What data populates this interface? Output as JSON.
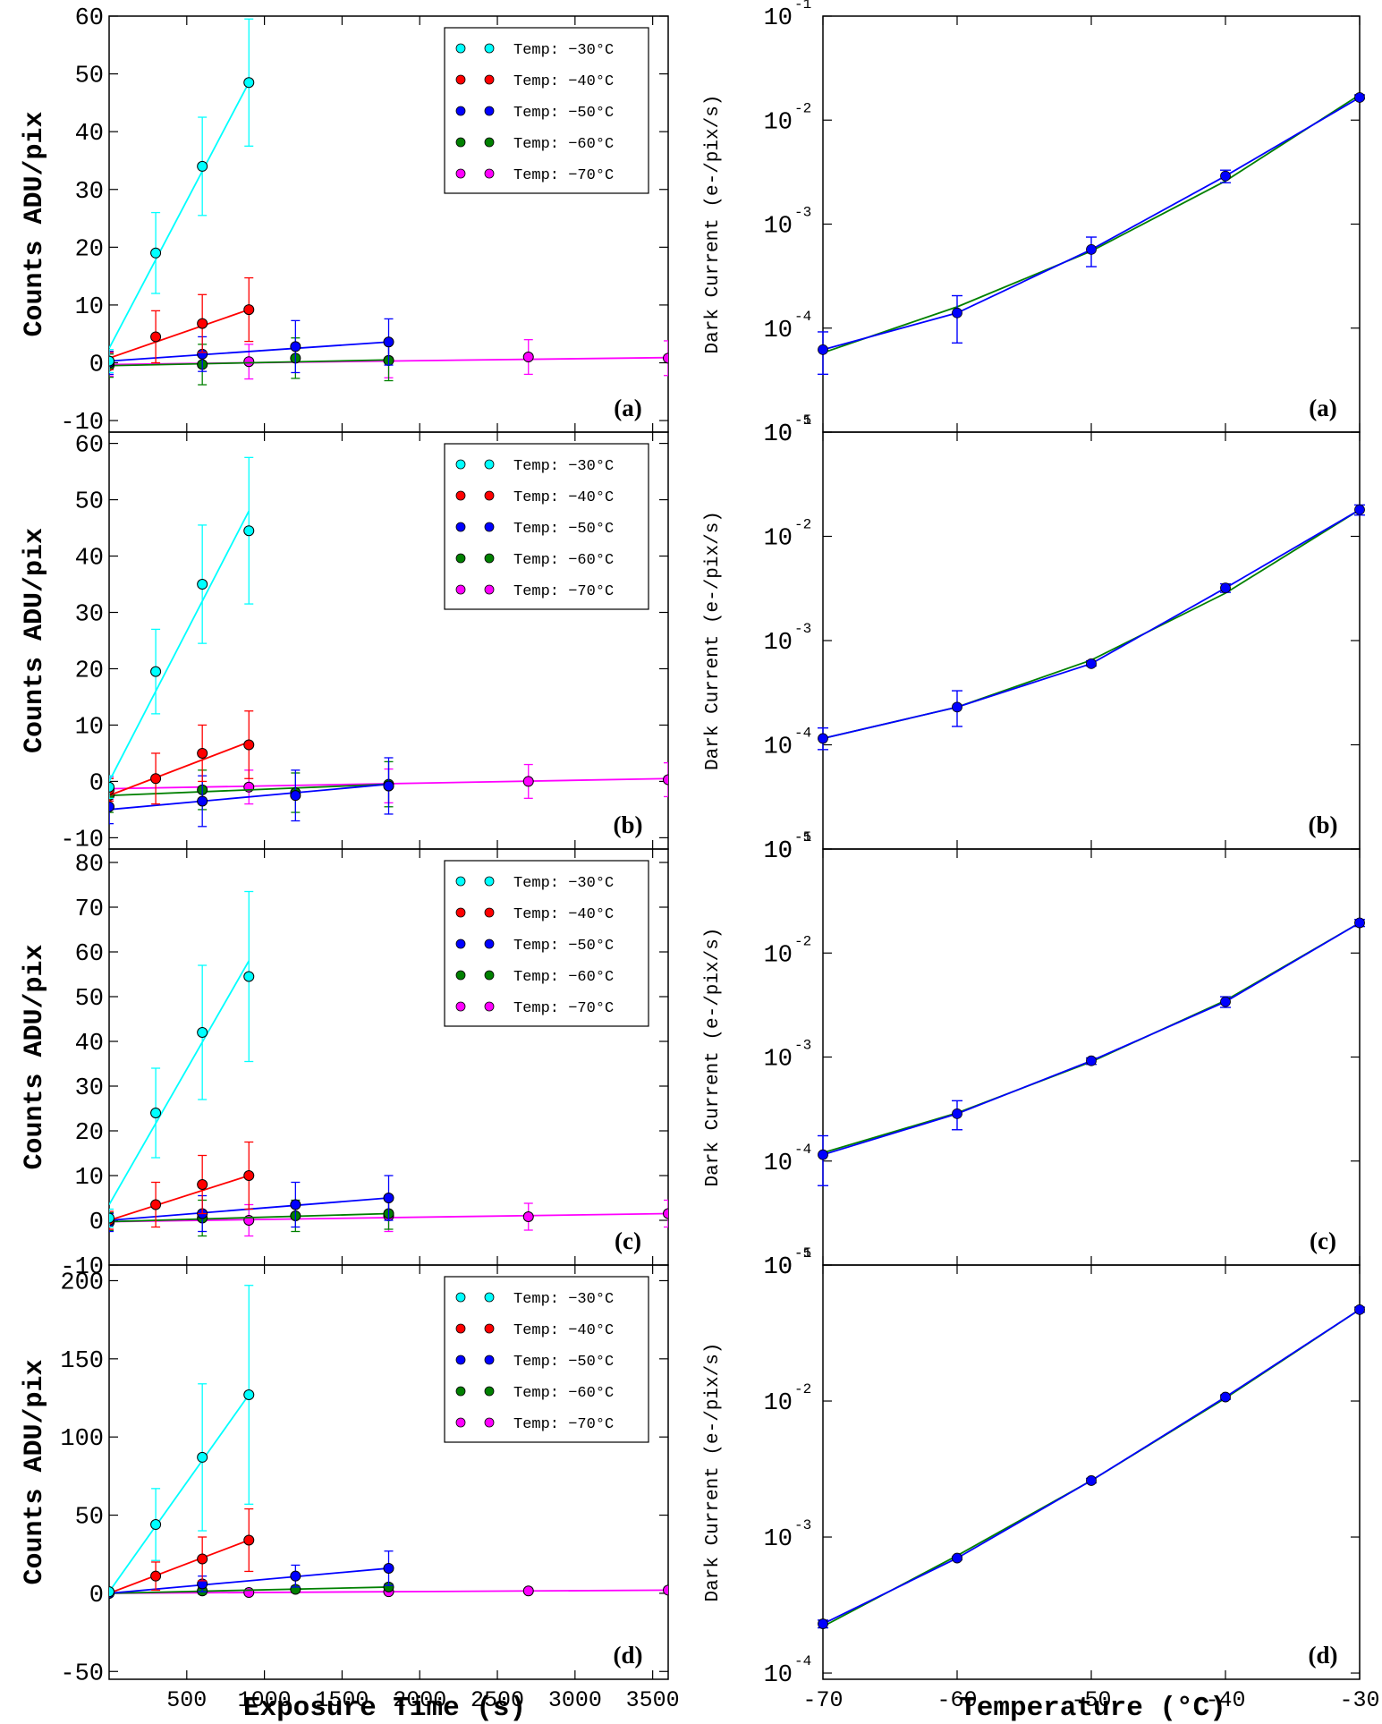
{
  "figure": {
    "left_xlabel": "Exposure Time (s)",
    "right_xlabel": "Temperature (°C)",
    "left_ylabel": "Counts ADU/pix",
    "right_ylabel": "Dark Current (e-/pix/s)"
  },
  "colors": {
    "-30": "#00ffff",
    "-40": "#ff0000",
    "-50": "#0000ff",
    "-60": "#008000",
    "-70": "#ff00ff",
    "fit": "#008000",
    "meas": "#0000ff"
  },
  "chart_data": [
    {
      "type": "scatter",
      "panel": "(a)",
      "title": "",
      "xlabel": "Exposure Time (s)",
      "ylabel": "Counts ADU/pix",
      "xlim": [
        0,
        3600
      ],
      "ylim": [
        -12,
        60
      ],
      "yticks": [
        -10,
        0,
        10,
        20,
        30,
        40,
        50,
        60
      ],
      "xticks": [
        500,
        1000,
        1500,
        2000,
        2500,
        3000,
        3500
      ],
      "legend": "top-right",
      "series": [
        {
          "name": "Temp: −30°C",
          "temp": "-30",
          "x": [
            0,
            300,
            600,
            900
          ],
          "y": [
            0.3,
            19,
            34,
            48.5
          ],
          "err": [
            2,
            7,
            8.5,
            11
          ],
          "fit": [
            [
              0,
              2.5
            ],
            [
              900,
              48.5
            ]
          ]
        },
        {
          "name": "Temp: −40°C",
          "temp": "-40",
          "x": [
            0,
            300,
            600,
            900
          ],
          "y": [
            0.3,
            4.5,
            6.8,
            9.2
          ],
          "err": [
            1.5,
            4.5,
            5,
            5.5
          ],
          "fit": [
            [
              0,
              0.8
            ],
            [
              900,
              9.2
            ]
          ]
        },
        {
          "name": "Temp: −50°C",
          "temp": "-50",
          "x": [
            0,
            600,
            1200,
            1800
          ],
          "y": [
            0,
            1.5,
            2.8,
            3.6
          ],
          "err": [
            2,
            3,
            4.5,
            4
          ],
          "fit": [
            [
              0,
              0.3
            ],
            [
              1800,
              3.6
            ]
          ]
        },
        {
          "name": "Temp: −60°C",
          "temp": "-60",
          "x": [
            0,
            600,
            1200,
            1800
          ],
          "y": [
            -0.5,
            -0.3,
            0.8,
            0.4
          ],
          "err": [
            2,
            3.5,
            3.5,
            3.5
          ],
          "fit": [
            [
              0,
              -0.5
            ],
            [
              1800,
              0.5
            ]
          ]
        },
        {
          "name": "Temp: −70°C",
          "temp": "-70",
          "x": [
            0,
            900,
            1800,
            2700,
            3600
          ],
          "y": [
            -0.3,
            0.2,
            0.4,
            1,
            0.8
          ],
          "err": [
            2,
            3,
            3,
            3,
            3
          ],
          "fit": [
            [
              0,
              -0.3
            ],
            [
              3600,
              0.9
            ]
          ]
        }
      ]
    },
    {
      "type": "scatter",
      "panel": "(b)",
      "title": "",
      "xlabel": "Exposure Time (s)",
      "ylabel": "Counts ADU/pix",
      "xlim": [
        0,
        3600
      ],
      "ylim": [
        -12,
        62
      ],
      "yticks": [
        -10,
        0,
        10,
        20,
        30,
        40,
        50,
        60
      ],
      "xticks": [
        500,
        1000,
        1500,
        2000,
        2500,
        3000,
        3500
      ],
      "legend": "top-right",
      "series": [
        {
          "name": "Temp: −30°C",
          "temp": "-30",
          "x": [
            0,
            300,
            600,
            900
          ],
          "y": [
            -1,
            19.5,
            35,
            44.5
          ],
          "err": [
            2,
            7.5,
            10.5,
            13
          ],
          "fit": [
            [
              0,
              0
            ],
            [
              900,
              48
            ]
          ]
        },
        {
          "name": "Temp: −40°C",
          "temp": "-40",
          "x": [
            0,
            300,
            600,
            900
          ],
          "y": [
            -1.5,
            0.5,
            5,
            6.5
          ],
          "err": [
            2,
            4.5,
            5,
            6
          ],
          "fit": [
            [
              0,
              -2.5
            ],
            [
              900,
              7
            ]
          ]
        },
        {
          "name": "Temp: −50°C",
          "temp": "-50",
          "x": [
            0,
            600,
            1200,
            1800
          ],
          "y": [
            -4.5,
            -3.5,
            -2.5,
            -0.8
          ],
          "err": [
            3,
            4.5,
            4.5,
            5
          ],
          "fit": [
            [
              0,
              -5
            ],
            [
              1800,
              -0.5
            ]
          ]
        },
        {
          "name": "Temp: −60°C",
          "temp": "-60",
          "x": [
            0,
            600,
            1200,
            1800
          ],
          "y": [
            -2.5,
            -1.5,
            -2,
            -0.5
          ],
          "err": [
            3,
            3.5,
            3.5,
            4
          ],
          "fit": [
            [
              0,
              -2.5
            ],
            [
              1800,
              -0.5
            ]
          ]
        },
        {
          "name": "Temp: −70°C",
          "temp": "-70",
          "x": [
            0,
            900,
            1800,
            2700,
            3600
          ],
          "y": [
            -1.2,
            -1,
            -0.8,
            0,
            0.3
          ],
          "err": [
            2,
            3,
            3,
            3,
            3
          ],
          "fit": [
            [
              0,
              -1.3
            ],
            [
              3600,
              0.5
            ]
          ]
        }
      ]
    },
    {
      "type": "scatter",
      "panel": "(c)",
      "title": "",
      "xlabel": "Exposure Time (s)",
      "ylabel": "Counts ADU/pix",
      "xlim": [
        0,
        3600
      ],
      "ylim": [
        -10,
        83
      ],
      "yticks": [
        -10,
        0,
        10,
        20,
        30,
        40,
        50,
        60,
        70,
        80
      ],
      "xticks": [
        500,
        1000,
        1500,
        2000,
        2500,
        3000,
        3500
      ],
      "legend": "top-right",
      "series": [
        {
          "name": "Temp: −30°C",
          "temp": "-30",
          "x": [
            0,
            300,
            600,
            900
          ],
          "y": [
            0.5,
            24,
            42,
            54.5
          ],
          "err": [
            2,
            10,
            15,
            19
          ],
          "fit": [
            [
              0,
              3.5
            ],
            [
              900,
              58
            ]
          ]
        },
        {
          "name": "Temp: −40°C",
          "temp": "-40",
          "x": [
            0,
            300,
            600,
            900
          ],
          "y": [
            0,
            3.5,
            8,
            10
          ],
          "err": [
            2,
            5,
            6.5,
            7.5
          ],
          "fit": [
            [
              0,
              0
            ],
            [
              900,
              10
            ]
          ]
        },
        {
          "name": "Temp: −50°C",
          "temp": "-50",
          "x": [
            0,
            600,
            1200,
            1800
          ],
          "y": [
            -0.5,
            1.5,
            3.5,
            5
          ],
          "err": [
            2,
            4,
            5,
            5
          ],
          "fit": [
            [
              0,
              0
            ],
            [
              1800,
              5
            ]
          ]
        },
        {
          "name": "Temp: −60°C",
          "temp": "-60",
          "x": [
            0,
            600,
            1200,
            1800
          ],
          "y": [
            -0.3,
            0.5,
            1,
            1.5
          ],
          "err": [
            2,
            4,
            3.5,
            3.5
          ],
          "fit": [
            [
              0,
              -0.3
            ],
            [
              1800,
              1.5
            ]
          ]
        },
        {
          "name": "Temp: −70°C",
          "temp": "-70",
          "x": [
            0,
            900,
            1800,
            2700,
            3600
          ],
          "y": [
            -0.3,
            0,
            1,
            0.8,
            1.5
          ],
          "err": [
            2,
            3.5,
            3.5,
            3,
            3
          ],
          "fit": [
            [
              0,
              -0.3
            ],
            [
              3600,
              1.5
            ]
          ]
        }
      ]
    },
    {
      "type": "scatter",
      "panel": "(d)",
      "title": "",
      "xlabel": "Exposure Time (s)",
      "ylabel": "Counts ADU/pix",
      "xlim": [
        0,
        3600
      ],
      "ylim": [
        -55,
        210
      ],
      "yticks": [
        -50,
        0,
        50,
        100,
        150,
        200
      ],
      "xticks": [
        500,
        1000,
        1500,
        2000,
        2500,
        3000,
        3500
      ],
      "legend": "top-right",
      "series": [
        {
          "name": "Temp: −30°C",
          "temp": "-30",
          "x": [
            0,
            300,
            600,
            900
          ],
          "y": [
            1,
            44,
            87,
            127
          ],
          "err": [
            2,
            23,
            47,
            70
          ],
          "fit": [
            [
              0,
              1
            ],
            [
              900,
              127
            ]
          ]
        },
        {
          "name": "Temp: −40°C",
          "temp": "-40",
          "x": [
            0,
            300,
            600,
            900
          ],
          "y": [
            1,
            11,
            22,
            34
          ],
          "err": [
            2,
            9,
            14,
            20
          ],
          "fit": [
            [
              0,
              0
            ],
            [
              900,
              34
            ]
          ]
        },
        {
          "name": "Temp: −50°C",
          "temp": "-50",
          "x": [
            0,
            600,
            1200,
            1800
          ],
          "y": [
            0,
            6,
            11,
            16
          ],
          "err": [
            2,
            5,
            7,
            11
          ],
          "fit": [
            [
              0,
              0
            ],
            [
              1800,
              16
            ]
          ]
        },
        {
          "name": "Temp: −60°C",
          "temp": "-60",
          "x": [
            0,
            600,
            1200,
            1800
          ],
          "y": [
            0,
            1.5,
            2.5,
            4
          ],
          "err": [
            2,
            2,
            2,
            2
          ],
          "fit": [
            [
              0,
              0
            ],
            [
              1800,
              4
            ]
          ]
        },
        {
          "name": "Temp: −70°C",
          "temp": "-70",
          "x": [
            0,
            900,
            1800,
            2700,
            3600
          ],
          "y": [
            0,
            0.5,
            1,
            1.5,
            2
          ],
          "err": [
            1,
            1,
            1,
            1,
            1
          ],
          "fit": [
            [
              0,
              0
            ],
            [
              3600,
              2
            ]
          ]
        }
      ]
    },
    {
      "type": "line",
      "panel": "(a)",
      "title": "",
      "xlabel": "Temperature (°C)",
      "ylabel": "Dark Current (e-/pix/s)",
      "yscale": "log",
      "xlim": [
        -70,
        -30
      ],
      "ylim": [
        1e-05,
        0.1
      ],
      "ytick_exponents": [
        -5,
        -4,
        -3,
        -2,
        -1
      ],
      "xticks": [
        -70,
        -60,
        -50,
        -40,
        -30
      ],
      "series": [
        {
          "name": "fit",
          "x": [
            -70,
            -60,
            -50,
            -40,
            -30
          ],
          "y": [
            5.8e-05,
            0.00016,
            0.00055,
            0.0026,
            0.0175
          ]
        },
        {
          "name": "measured",
          "x": [
            -70,
            -60,
            -50,
            -40,
            -30
          ],
          "y": [
            6.2e-05,
            0.00014,
            0.00057,
            0.0029,
            0.0165
          ],
          "err_low": [
            3.6e-05,
            7.2e-05,
            0.00039,
            0.0025,
            0.016
          ],
          "err_high": [
            9.2e-05,
            0.000205,
            0.00075,
            0.0033,
            0.0175
          ]
        }
      ]
    },
    {
      "type": "line",
      "panel": "(b)",
      "title": "",
      "xlabel": "Temperature (°C)",
      "ylabel": "Dark Current (e-/pix/s)",
      "yscale": "log",
      "xlim": [
        -70,
        -30
      ],
      "ylim": [
        1e-05,
        0.1
      ],
      "ytick_exponents": [
        -5,
        -4,
        -3,
        -2,
        -1
      ],
      "xticks": [
        -70,
        -60,
        -50,
        -40,
        -30
      ],
      "series": [
        {
          "name": "fit",
          "x": [
            -70,
            -60,
            -50,
            -40,
            -30
          ],
          "y": [
            0.000115,
            0.00023,
            0.00065,
            0.00285,
            0.018
          ]
        },
        {
          "name": "measured",
          "x": [
            -70,
            -60,
            -50,
            -40,
            -30
          ],
          "y": [
            0.000115,
            0.00023,
            0.0006,
            0.0032,
            0.018
          ],
          "err_low": [
            9e-05,
            0.00015,
            0.00057,
            0.0029,
            0.016
          ],
          "err_high": [
            0.000145,
            0.00033,
            0.00064,
            0.0035,
            0.02
          ]
        }
      ]
    },
    {
      "type": "line",
      "panel": "(c)",
      "title": "",
      "xlabel": "Temperature (°C)",
      "ylabel": "Dark Current (e-/pix/s)",
      "yscale": "log",
      "xlim": [
        -70,
        -30
      ],
      "ylim": [
        1e-05,
        0.1
      ],
      "ytick_exponents": [
        -5,
        -4,
        -3,
        -2,
        -1
      ],
      "xticks": [
        -70,
        -60,
        -50,
        -40,
        -30
      ],
      "series": [
        {
          "name": "fit",
          "x": [
            -70,
            -60,
            -50,
            -40,
            -30
          ],
          "y": [
            0.00012,
            0.00029,
            0.0009,
            0.0035,
            0.0195
          ]
        },
        {
          "name": "measured",
          "x": [
            -70,
            -60,
            -50,
            -40,
            -30
          ],
          "y": [
            0.000115,
            0.000285,
            0.00092,
            0.0034,
            0.0195
          ],
          "err_low": [
            5.8e-05,
            0.0002,
            0.00085,
            0.003,
            0.018
          ],
          "err_high": [
            0.000175,
            0.00038,
            0.00098,
            0.0038,
            0.021
          ]
        }
      ]
    },
    {
      "type": "line",
      "panel": "(d)",
      "title": "",
      "xlabel": "Temperature (°C)",
      "ylabel": "Dark Current (e-/pix/s)",
      "yscale": "log",
      "xlim": [
        -70,
        -30
      ],
      "ylim": [
        9e-05,
        0.1
      ],
      "ytick_exponents": [
        -4,
        -3,
        -2,
        -1
      ],
      "xticks": [
        -70,
        -60,
        -50,
        -40,
        -30
      ],
      "series": [
        {
          "name": "fit",
          "x": [
            -70,
            -60,
            -50,
            -40,
            -30
          ],
          "y": [
            0.00022,
            0.00073,
            0.0026,
            0.0105,
            0.047
          ]
        },
        {
          "name": "measured",
          "x": [
            -70,
            -60,
            -50,
            -40,
            -30
          ],
          "y": [
            0.00023,
            0.0007,
            0.0026,
            0.0107,
            0.047
          ],
          "err_low": [
            0.000215,
            0.00068,
            0.0025,
            0.0103,
            0.045
          ],
          "err_high": [
            0.000245,
            0.00072,
            0.0027,
            0.0111,
            0.049
          ]
        }
      ]
    }
  ]
}
